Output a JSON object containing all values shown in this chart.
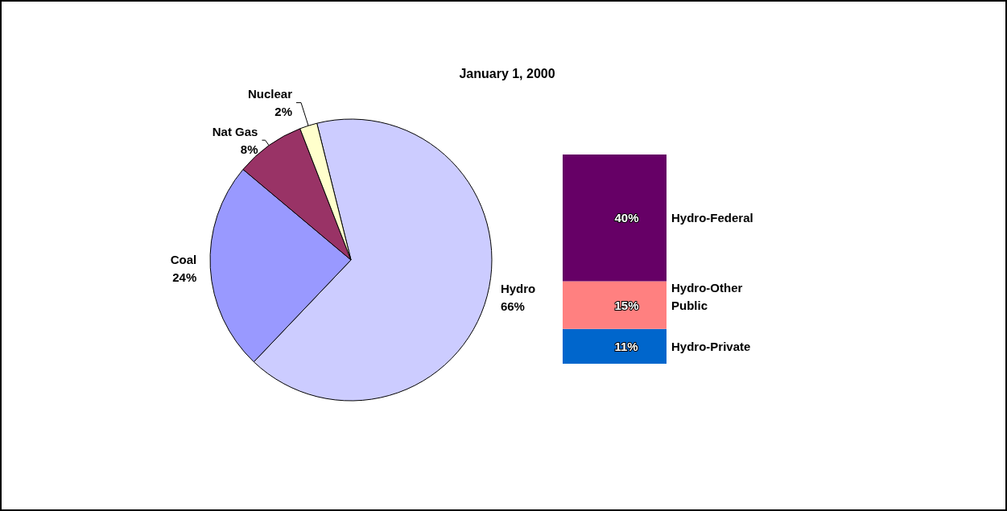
{
  "chart_data": [
    {
      "type": "pie",
      "title": "January 1, 2000",
      "categories": [
        "Hydro",
        "Coal",
        "Nat Gas",
        "Nuclear"
      ],
      "values": [
        66,
        24,
        8,
        2
      ],
      "colors": [
        "#ccccff",
        "#9999ff",
        "#993366",
        "#ffffcc"
      ],
      "value_labels": [
        "66%",
        "24%",
        "8%",
        "2%"
      ]
    },
    {
      "type": "bar",
      "stacked": true,
      "categories": [
        null
      ],
      "series": [
        {
          "name": "Hydro-Private",
          "color": "#0066cc",
          "values": [
            11
          ],
          "value_labels": [
            "11%"
          ]
        },
        {
          "name": "Hydro-Other Public",
          "color": "#ff8080",
          "values": [
            15
          ],
          "value_labels": [
            "15%"
          ]
        },
        {
          "name": "Hydro-Federal",
          "color": "#660066",
          "values": [
            40
          ],
          "value_labels": [
            "40%"
          ]
        }
      ]
    }
  ]
}
